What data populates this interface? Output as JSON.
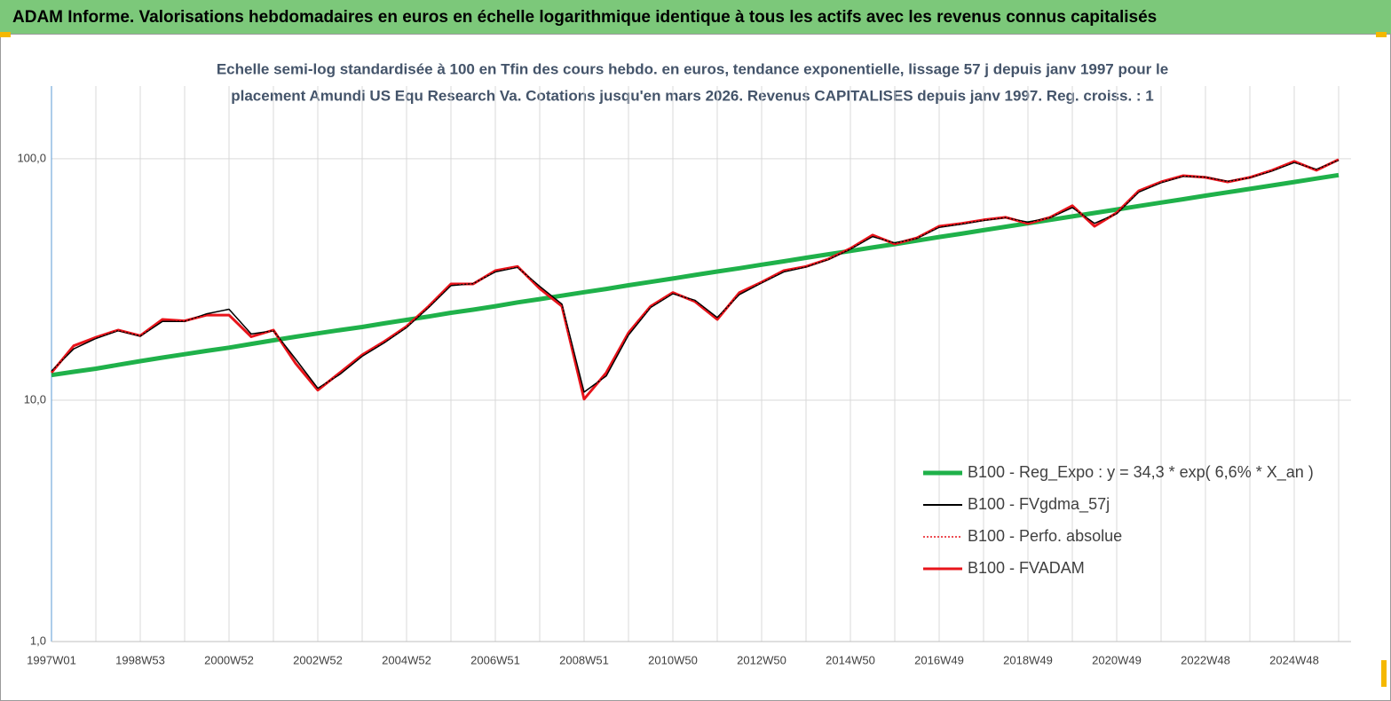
{
  "chart_data": {
    "type": "line",
    "banner": "ADAM Informe. Valorisations hebdomadaires en euros en échelle logarithmique identique à tous les actifs avec les revenus connus capitalisés",
    "subtitle": [
      "Echelle semi-log standardisée à 100 en Tfin des cours hebdo. en euros, tendance exponentielle, lissage 57 j depuis janv 1997 pour le",
      "placement Amundi US Equ Research Va. Cotations jusqu'en mars 2026. Revenus CAPITALISES depuis janv 1997. Reg. croiss. : 1"
    ],
    "log_scale": true,
    "grid": true,
    "legend": "lower-right",
    "ylim": [
      1,
      200
    ],
    "yticks": [
      {
        "value": 1,
        "label": "1,0"
      },
      {
        "value": 10,
        "label": "10,0"
      },
      {
        "value": 100,
        "label": "100,0"
      }
    ],
    "categories": [
      "1997W01",
      null,
      null,
      null,
      "1998W53",
      null,
      null,
      null,
      "2000W52",
      null,
      null,
      null,
      "2002W52",
      null,
      null,
      null,
      "2004W52",
      null,
      null,
      null,
      "2006W51",
      null,
      null,
      null,
      "2008W51",
      null,
      null,
      null,
      "2010W50",
      null,
      null,
      null,
      "2012W50",
      null,
      null,
      null,
      "2014W50",
      null,
      null,
      null,
      "2016W49",
      null,
      null,
      null,
      "2018W49",
      null,
      null,
      null,
      "2020W49",
      null,
      null,
      null,
      "2022W48",
      null,
      null,
      null,
      "2024W48",
      null,
      null
    ],
    "series": [
      {
        "name": "B100 - Reg_Expo : y = 34,3 *  exp( 6,6% *  X_an )",
        "color": "#1fb14a",
        "dash": "solid",
        "values": [
          12.7,
          13.1,
          13.5,
          14.0,
          14.5,
          15.0,
          15.5,
          16.0,
          16.5,
          17.1,
          17.7,
          18.3,
          18.9,
          19.5,
          20.1,
          20.8,
          21.5,
          22.2,
          23.0,
          23.7,
          24.5,
          25.4,
          26.2,
          27.1,
          28.0,
          28.9,
          29.9,
          30.9,
          31.9,
          33.0,
          34.1,
          35.2,
          36.4,
          37.6,
          38.9,
          40.2,
          41.5,
          42.9,
          44.3,
          45.8,
          47.4,
          48.9,
          50.6,
          52.3,
          54.0,
          55.8,
          57.7,
          59.6,
          61.6,
          63.7,
          65.8,
          68.0,
          70.3,
          72.6,
          75.0,
          77.5,
          80.1,
          82.8,
          85.6
        ]
      },
      {
        "name": "B100 - FVgdma_57j",
        "color": "#000000",
        "dash": "solid",
        "values": [
          13.2,
          16.3,
          18.0,
          19.4,
          18.4,
          21.2,
          21.2,
          22.8,
          23.8,
          18.8,
          19.4,
          14.8,
          11.2,
          12.8,
          15.2,
          17.3,
          20.0,
          24.2,
          29.8,
          30.4,
          34.0,
          35.5,
          29.6,
          25.0,
          10.8,
          12.6,
          18.6,
          24.2,
          27.6,
          25.9,
          22.0,
          27.4,
          30.6,
          34.0,
          35.6,
          38.2,
          42.2,
          47.6,
          44.8,
          46.8,
          52.0,
          53.6,
          55.5,
          57.0,
          54.6,
          57.0,
          62.8,
          54.0,
          59.2,
          72.8,
          79.6,
          84.6,
          83.9,
          80.6,
          83.4,
          89.0,
          96.4,
          90.4,
          98.6
        ]
      },
      {
        "name": "B100 - Perfo. absolue",
        "color": "#e8141b",
        "dash": "dotted",
        "values": [
          13.0,
          16.8,
          18.2,
          19.5,
          18.5,
          21.6,
          21.3,
          22.5,
          22.5,
          18.3,
          19.5,
          14.2,
          11.0,
          13.0,
          15.4,
          17.5,
          20.2,
          24.5,
          30.3,
          30.3,
          34.4,
          35.8,
          29.0,
          24.5,
          10.1,
          13.0,
          19.0,
          24.5,
          27.9,
          25.6,
          21.6,
          27.9,
          30.8,
          34.4,
          35.8,
          38.4,
          42.5,
          48.3,
          44.4,
          47.0,
          52.5,
          53.9,
          55.8,
          57.2,
          53.9,
          57.2,
          63.9,
          52.5,
          59.7,
          73.7,
          80.2,
          85.1,
          83.7,
          80.2,
          83.7,
          89.6,
          97.5,
          89.6,
          99.2
        ]
      },
      {
        "name": "B100 - FVADAM",
        "color": "#e8141b",
        "dash": "solid",
        "values": [
          13.0,
          16.8,
          18.2,
          19.5,
          18.5,
          21.6,
          21.3,
          22.5,
          22.5,
          18.3,
          19.5,
          14.2,
          11.0,
          13.0,
          15.4,
          17.5,
          20.2,
          24.5,
          30.3,
          30.3,
          34.4,
          35.8,
          29.0,
          24.5,
          10.1,
          13.0,
          19.0,
          24.5,
          27.9,
          25.6,
          21.6,
          27.9,
          30.8,
          34.4,
          35.8,
          38.4,
          42.5,
          48.3,
          44.4,
          47.0,
          52.5,
          53.9,
          55.8,
          57.2,
          53.9,
          57.2,
          63.9,
          52.5,
          59.7,
          73.7,
          80.2,
          85.1,
          83.7,
          80.2,
          83.7,
          89.6,
          97.5,
          89.6,
          99.2
        ]
      }
    ]
  }
}
